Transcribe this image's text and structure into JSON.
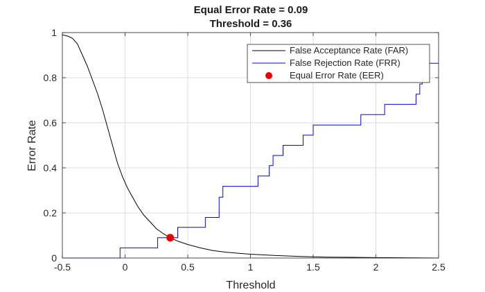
{
  "chart_data": {
    "type": "line",
    "title": [
      "Equal Error Rate = 0.09",
      "Threshold = 0.36"
    ],
    "xlabel": "Threshold",
    "ylabel": "Error Rate",
    "xlim": [
      -0.5,
      2.5
    ],
    "ylim": [
      0,
      1
    ],
    "xticks": [
      -0.5,
      0,
      0.5,
      1,
      1.5,
      2,
      2.5
    ],
    "xtick_labels": [
      "-0.5",
      "0",
      "0.5",
      "1",
      "1.5",
      "2",
      "2.5"
    ],
    "yticks": [
      0,
      0.2,
      0.4,
      0.6,
      0.8,
      1
    ],
    "ytick_labels": [
      "0",
      "0.2",
      "0.4",
      "0.6",
      "0.8",
      "1"
    ],
    "grid": true,
    "legend_position": "top-right",
    "series": [
      {
        "name": "False Acceptance Rate (FAR)",
        "color": "#000000",
        "style": "line",
        "x": [
          -0.5,
          -0.46,
          -0.42,
          -0.38,
          -0.34,
          -0.3,
          -0.26,
          -0.22,
          -0.18,
          -0.14,
          -0.1,
          -0.06,
          -0.02,
          0.02,
          0.06,
          0.1,
          0.15,
          0.2,
          0.25,
          0.3,
          0.36,
          0.42,
          0.5,
          0.6,
          0.7,
          0.8,
          0.9,
          1.0,
          1.2,
          1.4,
          1.6,
          1.8,
          2.0,
          2.2,
          2.5
        ],
        "y": [
          0.99,
          0.985,
          0.975,
          0.95,
          0.9,
          0.85,
          0.79,
          0.73,
          0.66,
          0.58,
          0.5,
          0.42,
          0.36,
          0.31,
          0.27,
          0.23,
          0.19,
          0.16,
          0.13,
          0.11,
          0.09,
          0.075,
          0.06,
          0.045,
          0.033,
          0.026,
          0.021,
          0.017,
          0.011,
          0.007,
          0.004,
          0.003,
          0.002,
          0.001,
          0.0
        ]
      },
      {
        "name": "False Rejection Rate (FRR)",
        "color": "#0000ff",
        "style": "step",
        "x": [
          -0.5,
          -0.04,
          0.26,
          0.42,
          0.64,
          0.75,
          0.78,
          1.06,
          1.15,
          1.18,
          1.26,
          1.42,
          1.5,
          1.88,
          2.07,
          2.32,
          2.35,
          2.37,
          2.38,
          2.42,
          2.5
        ],
        "y": [
          0.0,
          0.045,
          0.09,
          0.136,
          0.18,
          0.27,
          0.318,
          0.364,
          0.41,
          0.455,
          0.5,
          0.545,
          0.59,
          0.636,
          0.682,
          0.727,
          0.772,
          0.8,
          0.818,
          0.864,
          0.864
        ]
      },
      {
        "name": "Equal Error Rate (EER)",
        "color": "#ee0000",
        "style": "marker",
        "x": [
          0.36
        ],
        "y": [
          0.09
        ]
      }
    ]
  }
}
